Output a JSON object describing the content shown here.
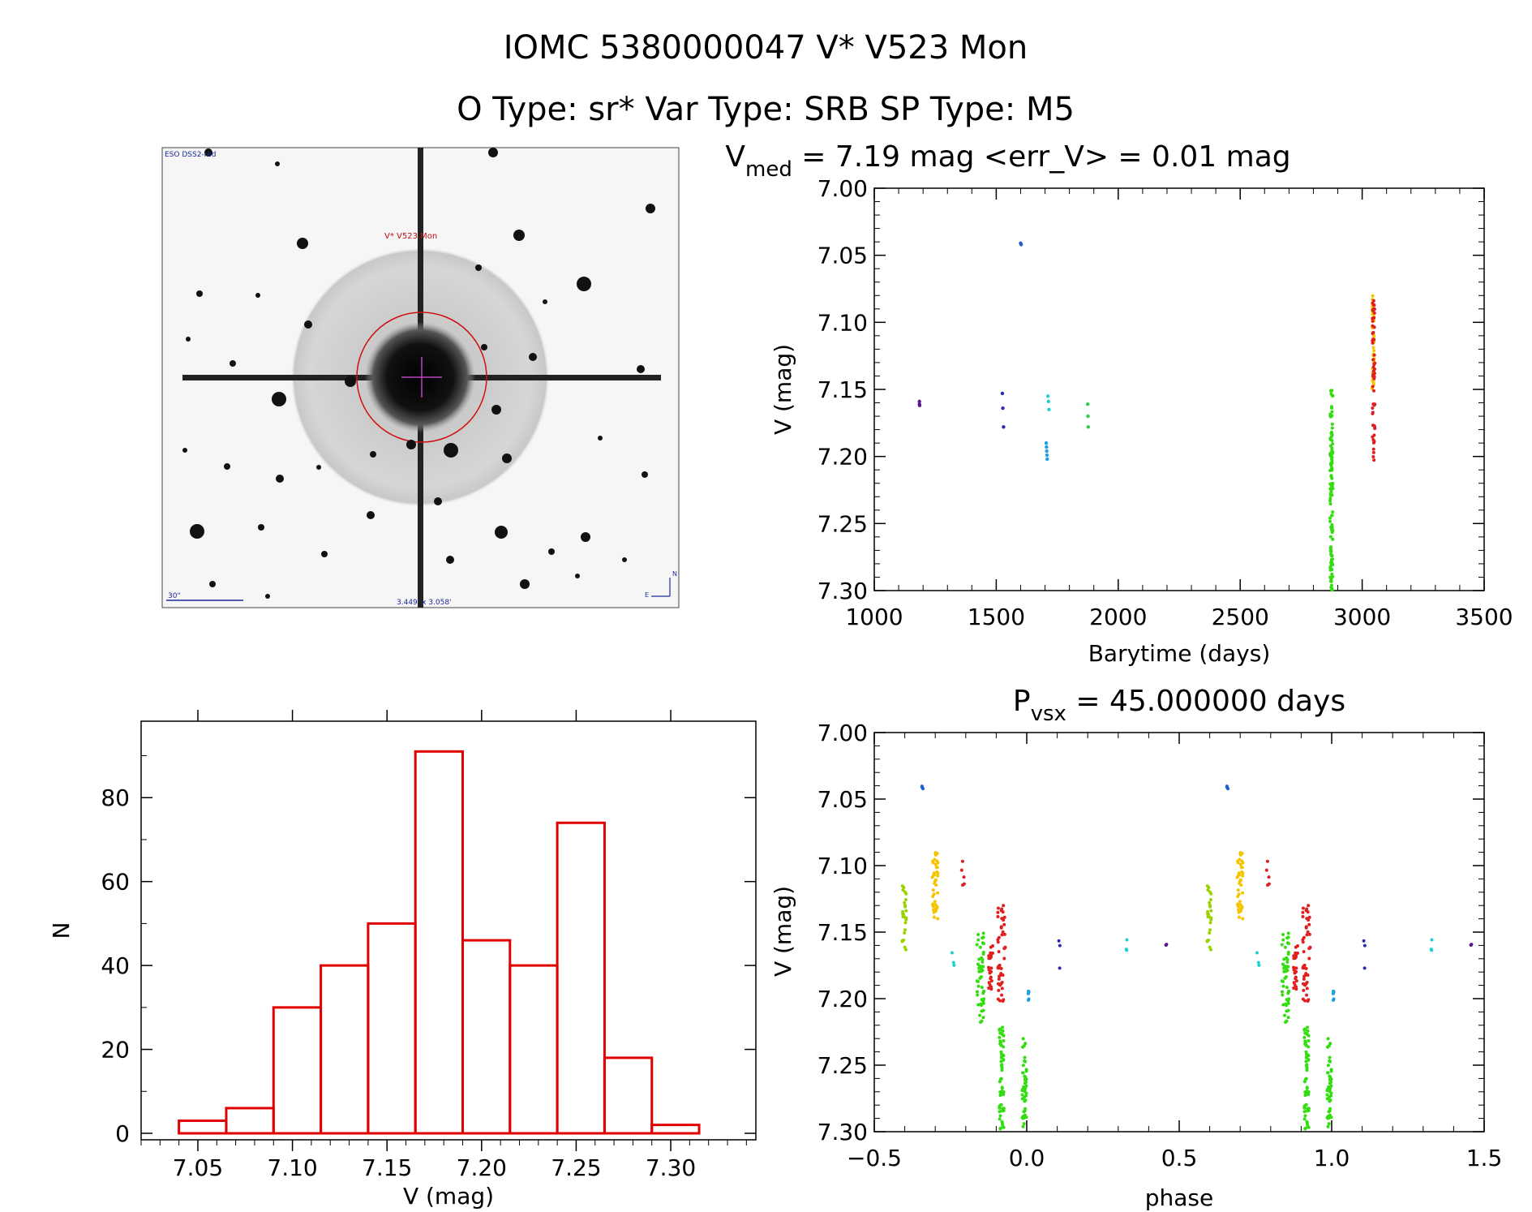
{
  "title_line1": "IOMC 5380000047     V* V523 Mon",
  "title_line2": "O Type: sr*  Var Type: SRB  SP Type: M5",
  "image_panel": {
    "survey_label": "ESO DSS2-red",
    "object_label": "V* V523 Mon",
    "scale_label": "30\"",
    "fov_label": "3.449' x 3.058'",
    "north_label": "N",
    "east_label": "E"
  },
  "chart_data": [
    {
      "type": "scatter",
      "id": "lightcurve",
      "title": "V_med = 7.19 mag <err_V> = 0.01 mag",
      "title_parts": {
        "pre": "V",
        "sub": "med",
        "post": " = 7.19 mag <err_V> = 0.01 mag"
      },
      "xlabel": "Barytime (days)",
      "ylabel": "V (mag)",
      "xlim": [
        1000,
        3500
      ],
      "ylim": [
        7.3,
        7.0
      ],
      "xticks": [
        "1000",
        "1500",
        "2000",
        "2500",
        "3000",
        "3500"
      ],
      "yticks": [
        "7.00",
        "7.05",
        "7.10",
        "7.15",
        "7.20",
        "7.25",
        "7.30"
      ],
      "series": [
        {
          "color": "#5a1a8a",
          "points": [
            [
              1185,
              7.159
            ],
            [
              1185,
              7.161
            ],
            [
              1186,
              7.162
            ]
          ]
        },
        {
          "color": "#2b2bb5",
          "points": [
            [
              1525,
              7.153
            ],
            [
              1527,
              7.164
            ],
            [
              1530,
              7.178
            ]
          ]
        },
        {
          "color": "#1e5fd6",
          "points": [
            [
              1600,
              7.041
            ],
            [
              1602,
              7.042
            ]
          ]
        },
        {
          "color": "#1ea0e0",
          "points": [
            [
              1705,
              7.19
            ],
            [
              1706,
              7.193
            ],
            [
              1707,
              7.196
            ],
            [
              1708,
              7.199
            ],
            [
              1709,
              7.202
            ]
          ]
        },
        {
          "color": "#20d0d0",
          "points": [
            [
              1712,
              7.155
            ],
            [
              1714,
              7.159
            ],
            [
              1716,
              7.165
            ]
          ]
        },
        {
          "color": "#30cc50",
          "points": [
            [
              1875,
              7.161
            ],
            [
              1876,
              7.17
            ],
            [
              1877,
              7.178
            ]
          ]
        },
        {
          "color": "#33dd11",
          "x_range": [
            2868,
            2880
          ],
          "y_range": [
            7.15,
            7.3
          ],
          "count": 120
        },
        {
          "color": "#f5c400",
          "x_range": [
            3040,
            3050
          ],
          "y_range": [
            7.08,
            7.15
          ],
          "count": 40
        },
        {
          "color": "#e02020",
          "x_range": [
            3042,
            3052
          ],
          "y_range": [
            7.08,
            7.205
          ],
          "count": 55
        }
      ]
    },
    {
      "type": "bar",
      "id": "histogram",
      "xlabel": "V (mag)",
      "ylabel": "N",
      "xlim": [
        7.02,
        7.345
      ],
      "ylim": [
        0,
        100
      ],
      "xticks": [
        "7.05",
        "7.10",
        "7.15",
        "7.20",
        "7.25",
        "7.30"
      ],
      "yticks": [
        "0",
        "20",
        "40",
        "60",
        "80"
      ],
      "bin_edges": [
        7.04,
        7.065,
        7.09,
        7.115,
        7.14,
        7.165,
        7.19,
        7.215,
        7.24,
        7.265,
        7.29,
        7.315
      ],
      "values": [
        3,
        6,
        30,
        40,
        50,
        91,
        46,
        40,
        74,
        18,
        2
      ],
      "color": "#e00000"
    },
    {
      "type": "scatter",
      "id": "phased",
      "title": "P_vsx = 45.000000 days",
      "title_parts": {
        "pre": "P",
        "sub": "vsx",
        "post": " = 45.000000 days"
      },
      "xlabel": "phase",
      "ylabel": "V (mag)",
      "xlim": [
        -0.5,
        1.5
      ],
      "ylim": [
        7.3,
        7.0
      ],
      "xticks": [
        "−0.5",
        "0.0",
        "0.5",
        "1.0",
        "1.5"
      ],
      "yticks": [
        "7.00",
        "7.05",
        "7.10",
        "7.15",
        "7.20",
        "7.25",
        "7.30"
      ],
      "clusters": [
        {
          "color": "#9ad400",
          "x_range": [
            -0.41,
            -0.395
          ],
          "y_range": [
            7.115,
            7.165
          ],
          "count": 25
        },
        {
          "color": "#f5c400",
          "x_range": [
            -0.31,
            -0.29
          ],
          "y_range": [
            7.09,
            7.14
          ],
          "count": 45
        },
        {
          "color": "#1e5fd6",
          "x_range": [
            -0.345,
            -0.34
          ],
          "y_range": [
            7.04,
            7.043
          ],
          "count": 4
        },
        {
          "color": "#20d0d0",
          "x_range": [
            -0.245,
            -0.235
          ],
          "y_range": [
            7.16,
            7.178
          ],
          "count": 3
        },
        {
          "color": "#e02020",
          "x_range": [
            -0.215,
            -0.205
          ],
          "y_range": [
            7.08,
            7.115
          ],
          "count": 5
        },
        {
          "color": "#33dd11",
          "x_range": [
            -0.165,
            -0.14
          ],
          "y_range": [
            7.15,
            7.22
          ],
          "count": 50
        },
        {
          "color": "#e02020",
          "x_range": [
            -0.125,
            -0.11
          ],
          "y_range": [
            7.16,
            7.195
          ],
          "count": 25
        },
        {
          "color": "#e02020",
          "x_range": [
            -0.095,
            -0.07
          ],
          "y_range": [
            7.13,
            7.21
          ],
          "count": 45
        },
        {
          "color": "#33dd11",
          "x_range": [
            -0.09,
            -0.075
          ],
          "y_range": [
            7.22,
            7.3
          ],
          "count": 60
        },
        {
          "color": "#33dd11",
          "x_range": [
            -0.015,
            0.0
          ],
          "y_range": [
            7.23,
            7.3
          ],
          "count": 45
        },
        {
          "color": "#1ea0e0",
          "x_range": [
            0.005,
            0.01
          ],
          "y_range": [
            7.19,
            7.202
          ],
          "count": 5
        },
        {
          "color": "#2b2bb5",
          "x_range": [
            0.105,
            0.11
          ],
          "y_range": [
            7.153,
            7.178
          ],
          "count": 3
        },
        {
          "color": "#20d0d0",
          "x_range": [
            0.325,
            0.33
          ],
          "y_range": [
            7.155,
            7.165
          ],
          "count": 3
        },
        {
          "color": "#5a1a8a",
          "x_range": [
            0.455,
            0.46
          ],
          "y_range": [
            7.159,
            7.162
          ],
          "count": 3
        }
      ]
    }
  ]
}
